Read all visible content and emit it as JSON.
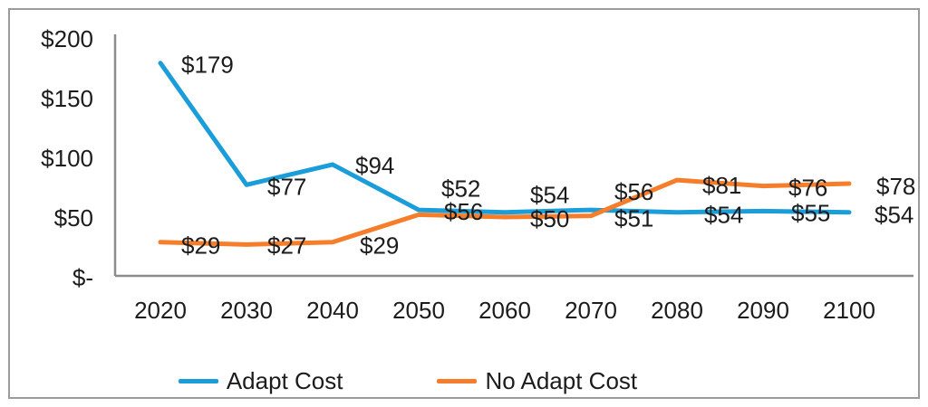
{
  "chart_data": {
    "type": "line",
    "title": "",
    "xlabel": "",
    "ylabel": "",
    "categories": [
      "2020",
      "2030",
      "2040",
      "2050",
      "2060",
      "2070",
      "2080",
      "2090",
      "2100"
    ],
    "series": [
      {
        "name": "Adapt Cost",
        "color": "#1b9dd9",
        "values": [
          179,
          77,
          94,
          56,
          54,
          56,
          54,
          55,
          54
        ],
        "data_labels": [
          "$179",
          "$77",
          "$94",
          "$56",
          "$54",
          "$56",
          "$54",
          "$55",
          "$54"
        ]
      },
      {
        "name": "No Adapt Cost",
        "color": "#f67d29",
        "values": [
          29,
          27,
          29,
          52,
          50,
          51,
          81,
          76,
          78
        ],
        "data_labels": [
          "$29",
          "$27",
          "$29",
          "$52",
          "$50",
          "$51",
          "$81",
          "$76",
          "$78"
        ]
      }
    ],
    "y_axis": {
      "tick_labels": [
        "$200",
        "$150",
        "$100",
        "$50",
        "$-"
      ],
      "tick_values": [
        200,
        150,
        100,
        50,
        0
      ],
      "range": [
        0,
        200
      ]
    },
    "grid": false,
    "legend_position": "bottom",
    "text_color": "#1c1c1c",
    "axis_color": "#8c8c8c"
  }
}
